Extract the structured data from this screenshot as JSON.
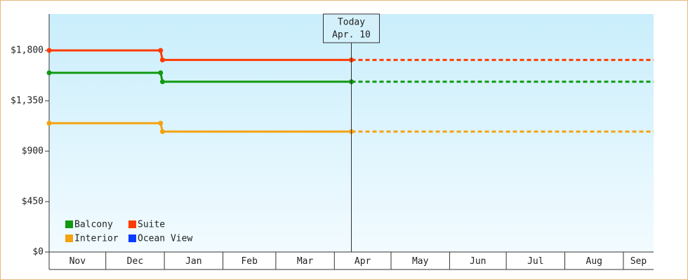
{
  "chart_data": {
    "type": "step",
    "ylim": [
      0,
      2125
    ],
    "yticks": [
      {
        "value": 0,
        "label": "$0"
      },
      {
        "value": 450,
        "label": "$450"
      },
      {
        "value": 900,
        "label": "$900"
      },
      {
        "value": 1350,
        "label": "$1,350"
      },
      {
        "value": 1800,
        "label": "$1,800"
      }
    ],
    "xlim": [
      0,
      320
    ],
    "xticks": [
      {
        "value": 0,
        "label": "Nov"
      },
      {
        "value": 30,
        "label": "Dec"
      },
      {
        "value": 61,
        "label": "Jan"
      },
      {
        "value": 92,
        "label": "Feb"
      },
      {
        "value": 120,
        "label": "Mar"
      },
      {
        "value": 151,
        "label": "Apr"
      },
      {
        "value": 181,
        "label": "May"
      },
      {
        "value": 212,
        "label": "Jun"
      },
      {
        "value": 242,
        "label": "Jul"
      },
      {
        "value": 273,
        "label": "Aug"
      },
      {
        "value": 304,
        "label": "Sep"
      }
    ],
    "today": {
      "x": 160,
      "label": "Today",
      "date": "Apr. 10"
    },
    "projected": true,
    "series": [
      {
        "name": "Balcony",
        "color": "#119911",
        "x": [
          0,
          59,
          60,
          160
        ],
        "values": [
          1600,
          1600,
          1520,
          1520
        ]
      },
      {
        "name": "Suite",
        "color": "#ff3b00",
        "x": [
          0,
          59,
          60,
          160
        ],
        "values": [
          1800,
          1800,
          1715,
          1715
        ]
      },
      {
        "name": "Interior",
        "color": "#f5a20f",
        "x": [
          0,
          59,
          60,
          160
        ],
        "values": [
          1150,
          1150,
          1075,
          1075
        ]
      },
      {
        "name": "Ocean View",
        "color": "#0a3cff",
        "x": [],
        "values": []
      }
    ]
  }
}
